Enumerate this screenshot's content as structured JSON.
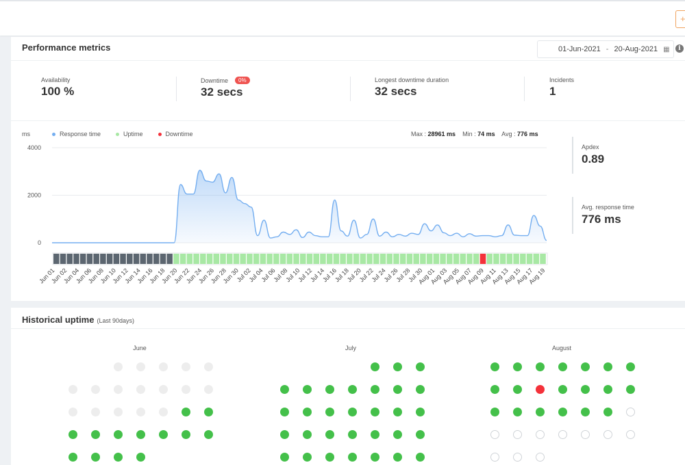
{
  "topbar": {
    "add_label": "+"
  },
  "performance": {
    "title": "Performance metrics",
    "date_from": "01-Jun-2021",
    "date_sep": "-",
    "date_to": "20-Aug-2021",
    "info_icon": "info-icon",
    "calendar_icon": "calendar-icon",
    "stats": [
      {
        "label": "Availability",
        "value": "100 %"
      },
      {
        "label": "Downtime",
        "value": "32 secs",
        "badge": "0%"
      },
      {
        "label": "Longest downtime duration",
        "value": "32 secs"
      },
      {
        "label": "Incidents",
        "value": "1"
      }
    ],
    "legend": {
      "unit": "ms",
      "response": "Response time",
      "uptime": "Uptime",
      "downtime": "Downtime"
    },
    "summary": {
      "max_label": "Max :",
      "max_value": "28961 ms",
      "min_label": "Min :",
      "min_value": "74 ms",
      "avg_label": "Avg :",
      "avg_value": "776 ms"
    },
    "apdex_label": "Apdex",
    "apdex_value": "0.89",
    "avg_rt_label": "Avg. response time",
    "avg_rt_value": "776 ms"
  },
  "colors": {
    "response": "#74aef0",
    "uptime": "#a8e8a4",
    "downtime": "#f4313a",
    "no_data": "#5c6670",
    "badge": "#ef5350"
  },
  "chart_data": {
    "type": "area",
    "ylabel": "ms",
    "ylim": [
      0,
      4000
    ],
    "yticks": [
      0,
      2000,
      4000
    ],
    "x_tick_labels": [
      "Jun 01",
      "Jun 02",
      "Jun 04",
      "Jun 06",
      "Jun 08",
      "Jun 10",
      "Jun 12",
      "Jun 14",
      "Jun 16",
      "Jun 18",
      "Jun 20",
      "Jun 22",
      "Jun 24",
      "Jun 26",
      "Jun 28",
      "Jun 30",
      "Jul 02",
      "Jul 04",
      "Jul 06",
      "Jul 08",
      "Jul 10",
      "Jul 12",
      "Jul 14",
      "Jul 16",
      "Jul 18",
      "Jul 20",
      "Jul 22",
      "Jul 24",
      "Jul 26",
      "Jul 28",
      "Jul 30",
      "Aug 01",
      "Aug 03",
      "Aug 05",
      "Aug 07",
      "Aug 09",
      "Aug 11",
      "Aug 13",
      "Aug 15",
      "Aug 17",
      "Aug 19"
    ],
    "series": [
      {
        "name": "Response time",
        "values": [
          0,
          0,
          0,
          0,
          0,
          0,
          0,
          0,
          0,
          0,
          0,
          0,
          0,
          0,
          0,
          0,
          0,
          0,
          0,
          0,
          2450,
          2050,
          2050,
          3050,
          2600,
          2550,
          2900,
          2100,
          2750,
          1800,
          1650,
          1500,
          300,
          950,
          200,
          250,
          450,
          350,
          550,
          220,
          450,
          300,
          250,
          250,
          1800,
          500,
          280,
          950,
          200,
          350,
          1000,
          280,
          450,
          250,
          350,
          280,
          400,
          350,
          800,
          500,
          750,
          420,
          300,
          400,
          250,
          380,
          280,
          300,
          300,
          250,
          300,
          750,
          320,
          300,
          300,
          1150,
          700,
          100
        ]
      }
    ],
    "status_strip": {
      "name": "Uptime status",
      "values": [
        "none",
        "none",
        "none",
        "none",
        "none",
        "none",
        "none",
        "none",
        "none",
        "none",
        "none",
        "none",
        "none",
        "none",
        "none",
        "none",
        "none",
        "none",
        "up",
        "up",
        "up",
        "up",
        "up",
        "up",
        "up",
        "up",
        "up",
        "up",
        "up",
        "up",
        "up",
        "up",
        "up",
        "up",
        "up",
        "up",
        "up",
        "up",
        "up",
        "up",
        "up",
        "up",
        "up",
        "up",
        "up",
        "up",
        "up",
        "up",
        "up",
        "up",
        "up",
        "up",
        "up",
        "up",
        "up",
        "up",
        "up",
        "up",
        "up",
        "up",
        "up",
        "up",
        "up",
        "up",
        "down",
        "up",
        "up",
        "up",
        "up",
        "up",
        "up",
        "up",
        "up",
        "up"
      ]
    }
  },
  "historical": {
    "title": "Historical uptime",
    "subtitle": "(Last 90days)",
    "months": [
      {
        "name": "June",
        "start_col": 2,
        "days": [
          "none",
          "none",
          "none",
          "none",
          "none",
          "none",
          "none",
          "none",
          "none",
          "none",
          "none",
          "none",
          "none",
          "none",
          "none",
          "none",
          "none",
          "up",
          "up",
          "up",
          "up",
          "up",
          "up",
          "up",
          "up",
          "up",
          "up",
          "up",
          "up",
          "up"
        ]
      },
      {
        "name": "July",
        "start_col": 4,
        "days": [
          "up",
          "up",
          "up",
          "up",
          "up",
          "up",
          "up",
          "up",
          "up",
          "up",
          "up",
          "up",
          "up",
          "up",
          "up",
          "up",
          "up",
          "up",
          "up",
          "up",
          "up",
          "up",
          "up",
          "up",
          "up",
          "up",
          "up",
          "up",
          "up",
          "up",
          "up"
        ]
      },
      {
        "name": "August",
        "start_col": 0,
        "days": [
          "up",
          "up",
          "up",
          "up",
          "up",
          "up",
          "up",
          "up",
          "up",
          "down",
          "up",
          "up",
          "up",
          "up",
          "up",
          "up",
          "up",
          "up",
          "up",
          "up",
          "future",
          "future",
          "future",
          "future",
          "future",
          "future",
          "future",
          "future",
          "future",
          "future",
          "future"
        ]
      }
    ]
  }
}
